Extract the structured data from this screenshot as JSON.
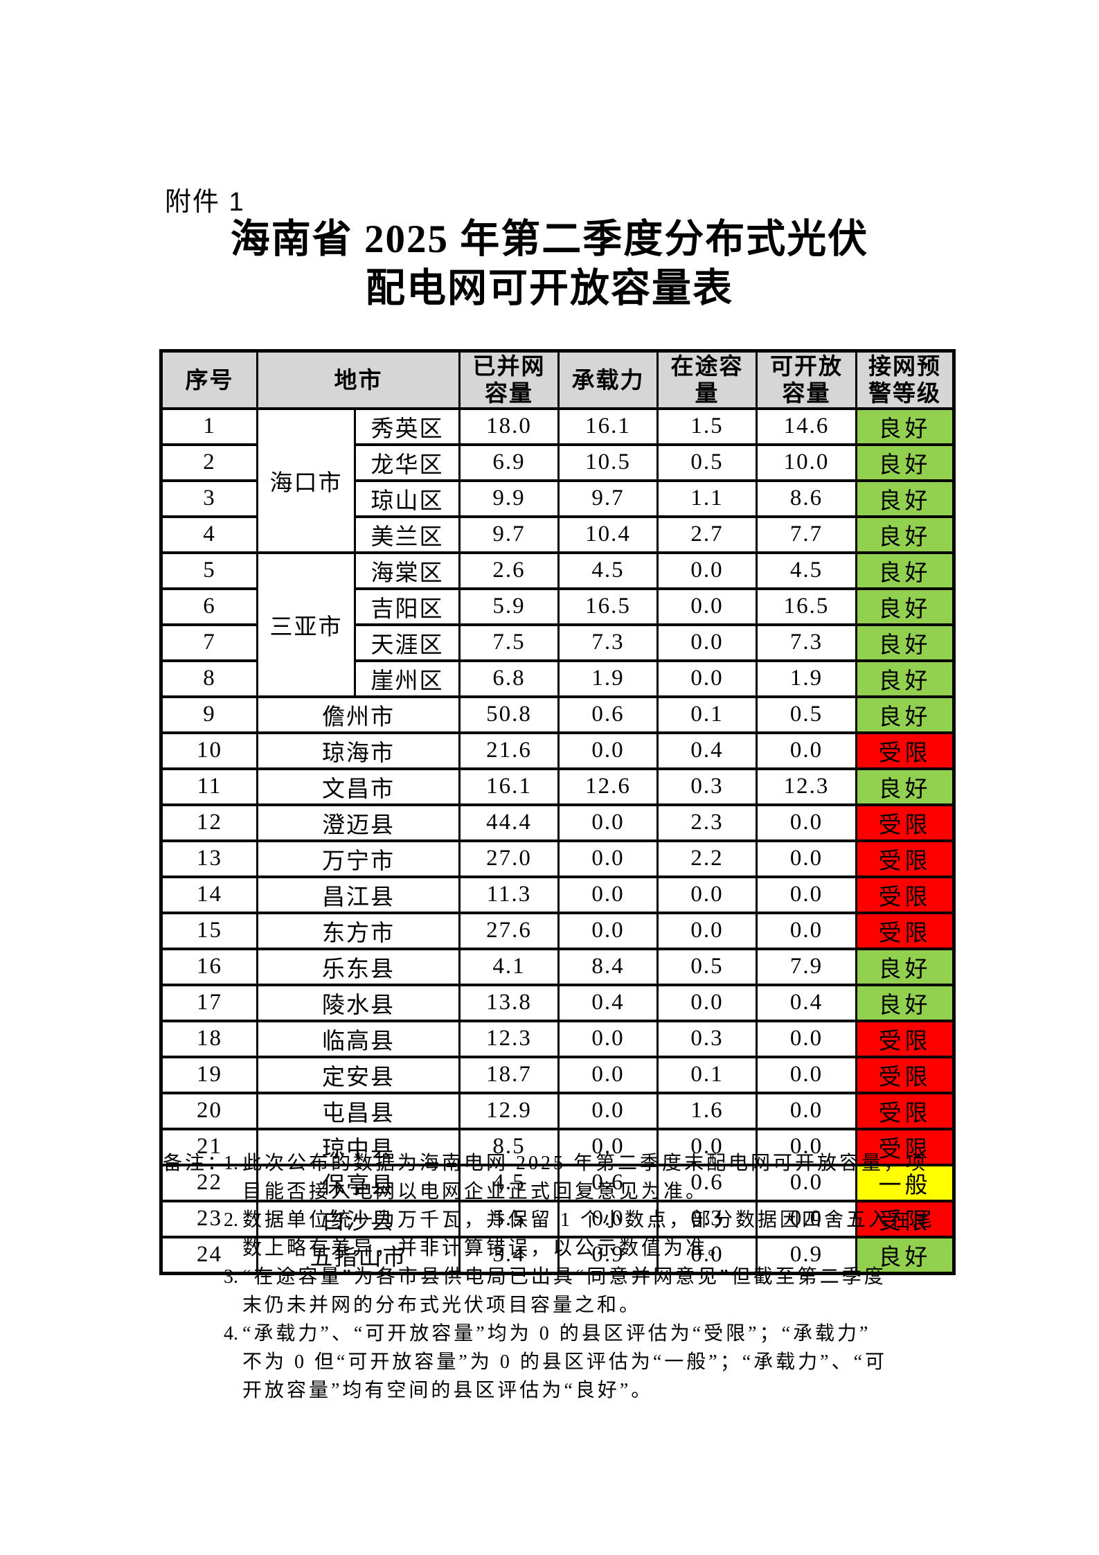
{
  "page": {
    "attachment_label": "附件 1"
  },
  "title": {
    "line1": "海南省 2025 年第二季度分布式光伏",
    "line2": "配电网可开放容量表"
  },
  "table": {
    "headers": {
      "serial": "序号",
      "region": "地市",
      "connected": "已并网\n容量",
      "capacity": "承载力",
      "pending": "在途容\n量",
      "openable": "可开放\n容量",
      "warning": "接网预\n警等级"
    },
    "rows": [
      {
        "no": "1",
        "city": "海口市",
        "city_rowspan": 4,
        "district": "秀英区",
        "connected": "18.0",
        "capacity": "16.1",
        "pending": "1.5",
        "openable": "14.6",
        "status": "良好"
      },
      {
        "no": "2",
        "district": "龙华区",
        "connected": "6.9",
        "capacity": "10.5",
        "pending": "0.5",
        "openable": "10.0",
        "status": "良好"
      },
      {
        "no": "3",
        "district": "琼山区",
        "connected": "9.9",
        "capacity": "9.7",
        "pending": "1.1",
        "openable": "8.6",
        "status": "良好"
      },
      {
        "no": "4",
        "district": "美兰区",
        "connected": "9.7",
        "capacity": "10.4",
        "pending": "2.7",
        "openable": "7.7",
        "status": "良好"
      },
      {
        "no": "5",
        "city": "三亚市",
        "city_rowspan": 4,
        "district": "海棠区",
        "connected": "2.6",
        "capacity": "4.5",
        "pending": "0.0",
        "openable": "4.5",
        "status": "良好"
      },
      {
        "no": "6",
        "district": "吉阳区",
        "connected": "5.9",
        "capacity": "16.5",
        "pending": "0.0",
        "openable": "16.5",
        "status": "良好"
      },
      {
        "no": "7",
        "district": "天涯区",
        "connected": "7.5",
        "capacity": "7.3",
        "pending": "0.0",
        "openable": "7.3",
        "status": "良好"
      },
      {
        "no": "8",
        "district": "崖州区",
        "connected": "6.8",
        "capacity": "1.9",
        "pending": "0.0",
        "openable": "1.9",
        "status": "良好"
      },
      {
        "no": "9",
        "city": "儋州市",
        "city_colspan": 2,
        "connected": "50.8",
        "capacity": "0.6",
        "pending": "0.1",
        "openable": "0.5",
        "status": "良好"
      },
      {
        "no": "10",
        "city": "琼海市",
        "city_colspan": 2,
        "connected": "21.6",
        "capacity": "0.0",
        "pending": "0.4",
        "openable": "0.0",
        "status": "受限"
      },
      {
        "no": "11",
        "city": "文昌市",
        "city_colspan": 2,
        "connected": "16.1",
        "capacity": "12.6",
        "pending": "0.3",
        "openable": "12.3",
        "status": "良好"
      },
      {
        "no": "12",
        "city": "澄迈县",
        "city_colspan": 2,
        "connected": "44.4",
        "capacity": "0.0",
        "pending": "2.3",
        "openable": "0.0",
        "status": "受限"
      },
      {
        "no": "13",
        "city": "万宁市",
        "city_colspan": 2,
        "connected": "27.0",
        "capacity": "0.0",
        "pending": "2.2",
        "openable": "0.0",
        "status": "受限"
      },
      {
        "no": "14",
        "city": "昌江县",
        "city_colspan": 2,
        "connected": "11.3",
        "capacity": "0.0",
        "pending": "0.0",
        "openable": "0.0",
        "status": "受限"
      },
      {
        "no": "15",
        "city": "东方市",
        "city_colspan": 2,
        "connected": "27.6",
        "capacity": "0.0",
        "pending": "0.0",
        "openable": "0.0",
        "status": "受限"
      },
      {
        "no": "16",
        "city": "乐东县",
        "city_colspan": 2,
        "connected": "4.1",
        "capacity": "8.4",
        "pending": "0.5",
        "openable": "7.9",
        "status": "良好"
      },
      {
        "no": "17",
        "city": "陵水县",
        "city_colspan": 2,
        "connected": "13.8",
        "capacity": "0.4",
        "pending": "0.0",
        "openable": "0.4",
        "status": "良好"
      },
      {
        "no": "18",
        "city": "临高县",
        "city_colspan": 2,
        "connected": "12.3",
        "capacity": "0.0",
        "pending": "0.3",
        "openable": "0.0",
        "status": "受限"
      },
      {
        "no": "19",
        "city": "定安县",
        "city_colspan": 2,
        "connected": "18.7",
        "capacity": "0.0",
        "pending": "0.1",
        "openable": "0.0",
        "status": "受限"
      },
      {
        "no": "20",
        "city": "屯昌县",
        "city_colspan": 2,
        "connected": "12.9",
        "capacity": "0.0",
        "pending": "1.6",
        "openable": "0.0",
        "status": "受限"
      },
      {
        "no": "21",
        "city": "琼中县",
        "city_colspan": 2,
        "connected": "8.5",
        "capacity": "0.0",
        "pending": "0.0",
        "openable": "0.0",
        "status": "受限"
      },
      {
        "no": "22",
        "city": "保亭县",
        "city_colspan": 2,
        "connected": "4.5",
        "capacity": "0.6",
        "pending": "0.6",
        "openable": "0.0",
        "status": "一般"
      },
      {
        "no": "23",
        "city": "白沙县",
        "city_colspan": 2,
        "connected": "5.5",
        "capacity": "0.0",
        "pending": "0.3",
        "openable": "0.0",
        "status": "受限"
      },
      {
        "no": "24",
        "city": "五指山市",
        "city_colspan": 2,
        "connected": "3.4",
        "capacity": "0.9",
        "pending": "0.0",
        "openable": "0.9",
        "status": "良好"
      }
    ]
  },
  "status_colors": {
    "良好": "#92d050",
    "受限": "#ff0000",
    "一般": "#ffff00"
  },
  "header_bg": "#d6d6d6",
  "notes": {
    "label": "备注：",
    "items": [
      {
        "number": "1.",
        "lines": [
          "此次公布的数据为海南电网 2025 年第二季度末配电网可开放容量，项",
          "目能否接入电网以电网企业正式回复意见为准。"
        ]
      },
      {
        "number": "2.",
        "lines": [
          "数据单位统一为万千瓦，并保留 1 个小数点，部分数据因四舍五入在尾",
          "数上略有差异，并非计算错误，以公示数值为准。"
        ]
      },
      {
        "number": "3.",
        "lines": [
          "“在途容量”为各市县供电局已出具“同意并网意见”但截至第二季度",
          "末仍未并网的分布式光伏项目容量之和。"
        ]
      },
      {
        "number": "4.",
        "lines": [
          "“承载力”、“可开放容量”均为 0 的县区评估为“受限”；“承载力”",
          "不为 0 但“可开放容量”为 0 的县区评估为“一般”；“承载力”、“可",
          "开放容量”均有空间的县区评估为“良好”。"
        ]
      }
    ]
  }
}
